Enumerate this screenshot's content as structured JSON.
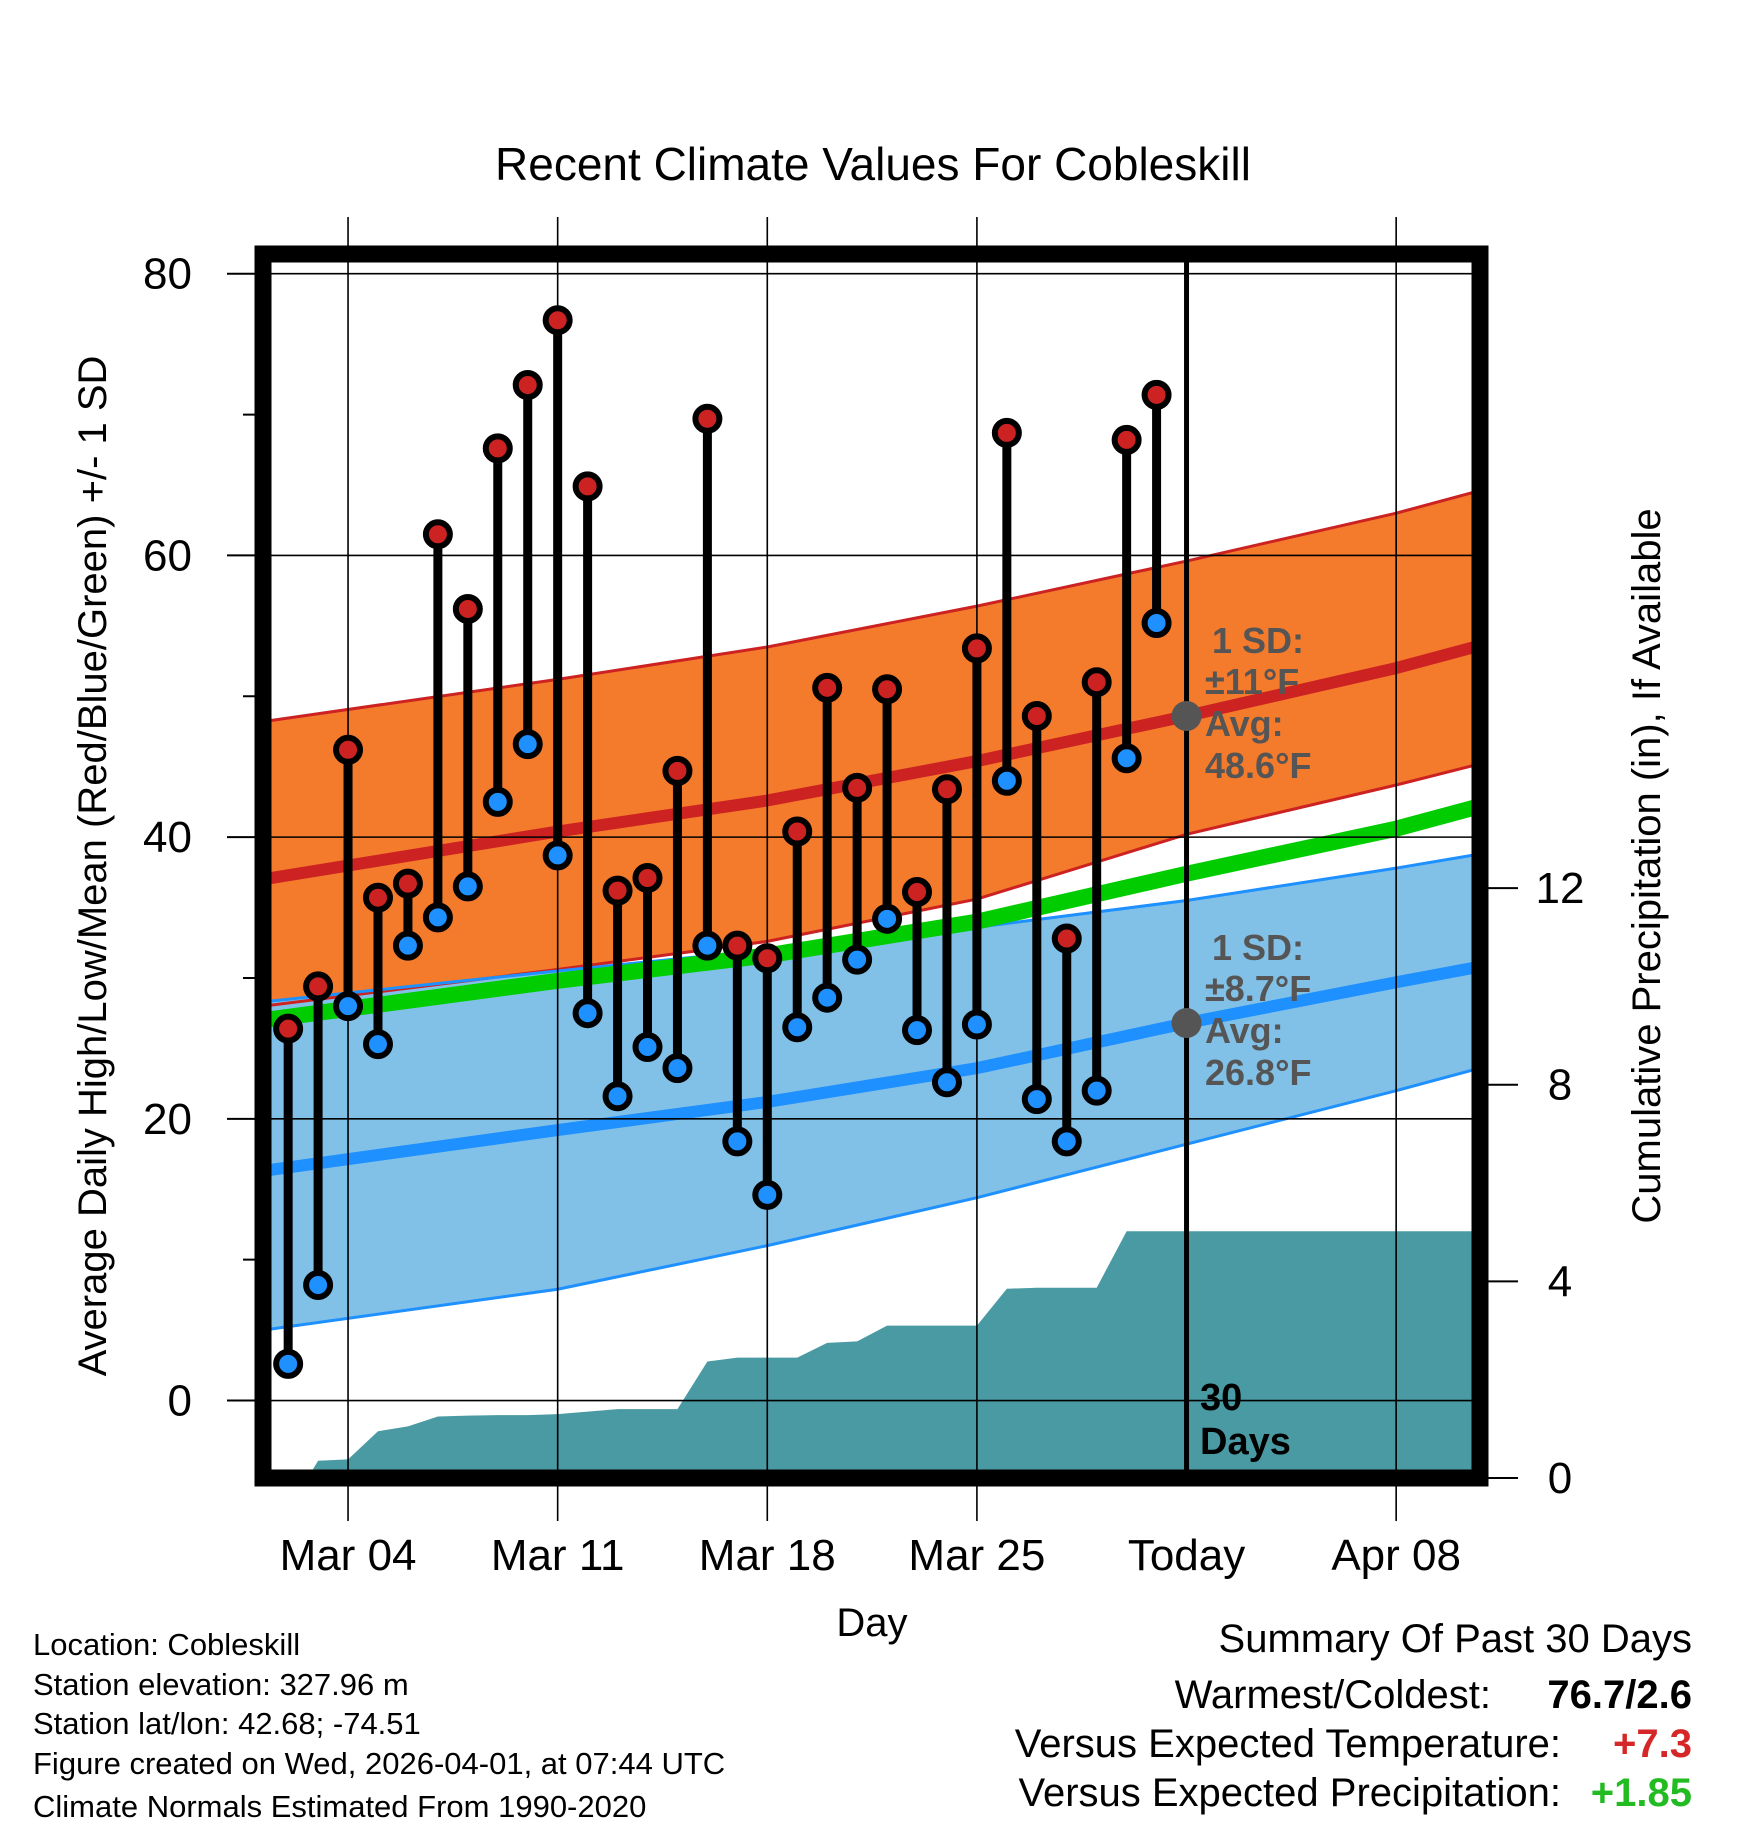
{
  "chart_data": {
    "type": "line",
    "title": "Recent Climate Values For Cobleskill",
    "xlabel": "Day",
    "ylabel": "Average Daily High/Low/Mean (Red/Blue/Green) +/- 1 SD",
    "y2label": "Cumulative Precipitation (in), If Available",
    "x_unit": "day of March (Apr 1 = 32)",
    "xlim": [
      1.16,
      41.8
    ],
    "ylim": [
      -5.5,
      81.4
    ],
    "y2lim": [
      0,
      24.9
    ],
    "grid": true,
    "xticks": [
      {
        "day": 4,
        "label": "Mar 04"
      },
      {
        "day": 11,
        "label": "Mar 11"
      },
      {
        "day": 18,
        "label": "Mar 18"
      },
      {
        "day": 25,
        "label": "Mar 25"
      },
      {
        "day": 32,
        "label": "Today"
      },
      {
        "day": 39,
        "label": "Apr 08"
      }
    ],
    "yticks": [
      0,
      20,
      40,
      60,
      80
    ],
    "yticks_minor": [
      10,
      30,
      50,
      70
    ],
    "y2ticks": [
      0,
      4,
      8,
      12
    ],
    "today_day": 32,
    "observed": {
      "days": [
        2,
        3,
        4,
        5,
        6,
        7,
        8,
        9,
        10,
        11,
        12,
        13,
        14,
        15,
        16,
        17,
        18,
        19,
        20,
        21,
        22,
        23,
        24,
        25,
        26,
        27,
        28,
        29,
        30,
        31
      ],
      "high": [
        26.4,
        29.4,
        46.2,
        35.7,
        36.7,
        61.5,
        56.2,
        67.6,
        72.1,
        76.7,
        64.9,
        36.2,
        37.1,
        44.7,
        69.7,
        32.3,
        31.4,
        40.4,
        50.6,
        43.5,
        50.5,
        36.1,
        43.4,
        53.4,
        68.7,
        48.6,
        32.8,
        51.0,
        68.2,
        71.4
      ],
      "low": [
        2.6,
        8.2,
        28.0,
        25.3,
        32.3,
        34.3,
        36.5,
        42.5,
        46.6,
        38.7,
        27.5,
        21.6,
        25.1,
        23.6,
        32.3,
        18.4,
        14.6,
        26.5,
        28.6,
        31.3,
        34.2,
        26.3,
        22.6,
        26.7,
        44.0,
        21.4,
        18.4,
        22.0,
        45.6,
        55.2
      ]
    },
    "normals": {
      "days": [
        1.16,
        11,
        18,
        25,
        32,
        39,
        41.8
      ],
      "high_avg": [
        37.0,
        40.4,
        42.6,
        45.4,
        48.6,
        52.0,
        53.6
      ],
      "high_upper": [
        48.2,
        51.2,
        53.5,
        56.4,
        59.6,
        63.0,
        64.6
      ],
      "high_lower": [
        28.0,
        30.6,
        32.6,
        35.6,
        40.2,
        43.7,
        45.2
      ],
      "low_avg": [
        16.3,
        19.2,
        21.2,
        23.6,
        26.8,
        29.7,
        30.8
      ],
      "low_upper": [
        28.3,
        30.5,
        32.0,
        33.6,
        35.5,
        37.8,
        38.8
      ],
      "low_lower": [
        5.0,
        7.9,
        11.0,
        14.4,
        18.2,
        22.0,
        23.6
      ],
      "mean": [
        27.0,
        29.8,
        31.6,
        34.0,
        37.4,
        40.6,
        42.2
      ]
    },
    "precip_cumulative": {
      "days": [
        2.65,
        3,
        4,
        5,
        6,
        7,
        8,
        9,
        10,
        11,
        12,
        13,
        14,
        15,
        16,
        17,
        18,
        19,
        20,
        21,
        22,
        23,
        24,
        25,
        26,
        27,
        28,
        29,
        30,
        31,
        41.8
      ],
      "values": [
        0,
        0.35,
        0.38,
        0.95,
        1.05,
        1.25,
        1.27,
        1.28,
        1.28,
        1.3,
        1.35,
        1.4,
        1.4,
        1.4,
        2.37,
        2.45,
        2.45,
        2.45,
        2.75,
        2.78,
        3.1,
        3.1,
        3.1,
        3.1,
        3.85,
        3.87,
        3.87,
        3.87,
        5.02,
        5.02,
        5.02
      ]
    },
    "annotations": {
      "high": {
        "line1": "1 SD:",
        "line2": "±11°F",
        "line3": "Avg:",
        "line4": "48.6°F"
      },
      "low": {
        "line1": "1 SD:",
        "line2": "±8.7°F",
        "line3": "Avg:",
        "line4": "26.8°F"
      },
      "days_label_1": "30",
      "days_label_2": "Days"
    },
    "colors": {
      "high_band": "#F47A2C",
      "high_line": "#CC2222",
      "low_band": "#82C1E7",
      "low_line": "#1E90FF",
      "mean_line": "#00CC00",
      "precip": "#4A9AA4",
      "annotation": "#555555",
      "high_point": "#CC2222",
      "low_point": "#1E90FF"
    }
  },
  "footer": {
    "location": "Location: Cobleskill",
    "elevation": "Station elevation: 327.96 m",
    "latlon": "Station lat/lon: 42.68; -74.51",
    "created": "Figure created on Wed, 2026-04-01, at 07:44 UTC",
    "normals": "Climate Normals Estimated From 1990-2020"
  },
  "summary": {
    "heading": "Summary Of Past 30 Days",
    "warmest_label": "Warmest/Coldest:",
    "warmest_value": "76.7/2.6",
    "temp_label": "Versus Expected Temperature:",
    "temp_value": "+7.3",
    "temp_color": "#D62728",
    "precip_label": "Versus Expected Precipitation:",
    "precip_value": "+1.85",
    "precip_color": "#22BB22"
  }
}
